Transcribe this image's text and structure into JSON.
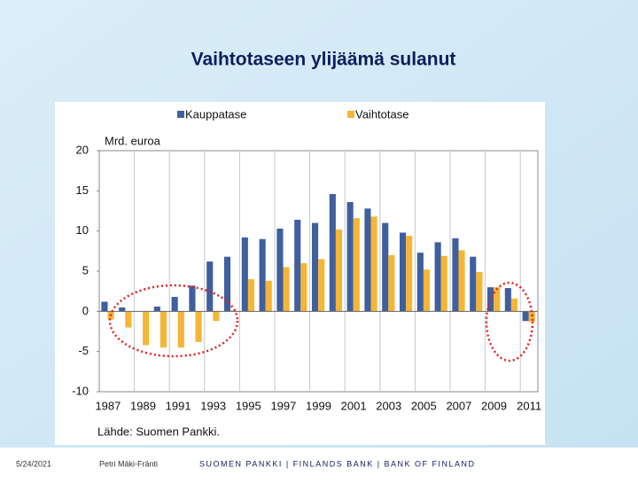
{
  "chart_data": {
    "type": "bar",
    "title": "Vaihtotaseen ylijäämä sulanut",
    "y_label": "Mrd. euroa",
    "source": "Lähde: Suomen Pankki.",
    "categories": [
      "1987",
      null,
      "1989",
      null,
      "1991",
      null,
      "1993",
      null,
      "1995",
      null,
      "1997",
      null,
      "1999",
      null,
      "2001",
      null,
      "2003",
      null,
      "2005",
      null,
      "2007",
      null,
      "2009",
      null,
      "2011"
    ],
    "series": [
      {
        "name": "Kauppatase",
        "color": "#3f5f9e",
        "values": [
          1.2,
          0.5,
          0.0,
          0.6,
          1.8,
          3.2,
          6.2,
          6.8,
          9.2,
          9.0,
          10.3,
          11.4,
          11.0,
          14.6,
          13.6,
          12.8,
          11.0,
          9.8,
          7.3,
          8.6,
          9.1,
          6.8,
          3.0,
          2.9,
          -1.2
        ]
      },
      {
        "name": "Vaihtotase",
        "color": "#f5b535",
        "values": [
          -1.0,
          -2.0,
          -4.2,
          -4.5,
          -4.5,
          -3.8,
          -1.2,
          0.1,
          4.0,
          3.8,
          5.5,
          6.0,
          6.5,
          10.2,
          11.6,
          11.8,
          7.0,
          9.4,
          5.2,
          6.9,
          7.6,
          4.9,
          3.0,
          1.6,
          -1.3
        ]
      }
    ],
    "ylim": [
      -10,
      20
    ],
    "yticks": [
      -10,
      -5,
      0,
      5,
      10,
      15,
      20
    ]
  },
  "footer": {
    "date": "5/24/2021",
    "author": "Petri Mäki-Fränti",
    "organization": "SUOMEN PANKKI | FINLANDS BANK | BANK OF FINLAND"
  }
}
